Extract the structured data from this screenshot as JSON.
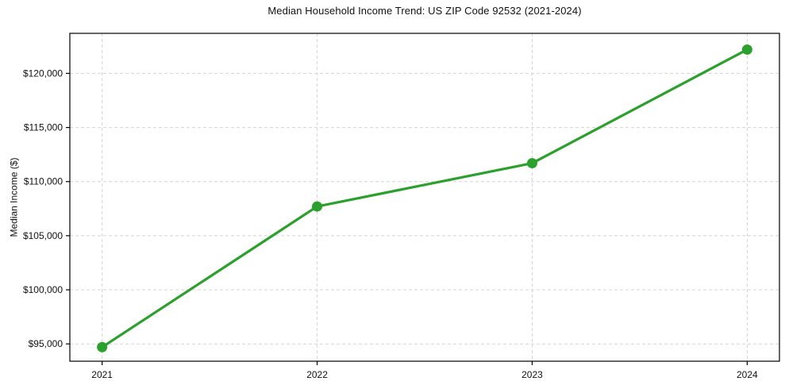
{
  "chart_data": {
    "type": "line",
    "title": "Median Household Income Trend: US ZIP Code 92532 (2021-2024)",
    "xlabel": "",
    "ylabel": "Median Income ($)",
    "x": [
      2021,
      2022,
      2023,
      2024
    ],
    "xtick_labels": [
      "2021",
      "2022",
      "2023",
      "2024"
    ],
    "series": [
      {
        "name": "median-household-income",
        "values": [
          94700,
          107700,
          111700,
          122200
        ],
        "color": "#2ca02c",
        "marker": "circle",
        "line_width": 3.2,
        "marker_radius": 6.5
      }
    ],
    "xlim": [
      2020.85,
      2024.15
    ],
    "ylim": [
      93400,
      123700
    ],
    "yticks": [
      95000,
      100000,
      105000,
      110000,
      115000,
      120000
    ],
    "ytick_labels": [
      "$95,000",
      "$100,000",
      "$105,000",
      "$110,000",
      "$115,000",
      "$120,000"
    ],
    "grid": true,
    "grid_style": "dashed",
    "grid_color": "#d4d4d4",
    "frame_color": "#000000",
    "text_color": "#111111",
    "background": "#ffffff",
    "legend": null
  }
}
